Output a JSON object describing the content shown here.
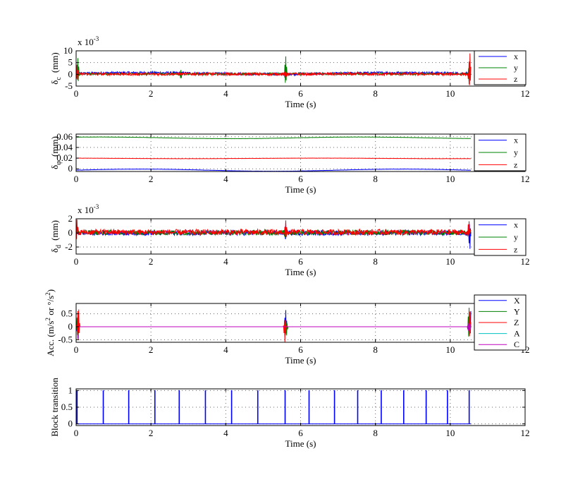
{
  "chart_data": [
    {
      "type": "line",
      "xlabel": "Time (s)",
      "ylabel": "δc (mm)",
      "ylabel_parts": {
        "main": "δ",
        "sub": "c",
        "unit": "(mm)"
      },
      "exponent_label": {
        "base": "x 10",
        "power": "-3"
      },
      "xlim": [
        0,
        12
      ],
      "xticks": [
        0,
        2,
        4,
        6,
        8,
        10,
        12
      ],
      "xtick_labels": [
        "0",
        "2",
        "4",
        "6",
        "8",
        "10",
        "12"
      ],
      "ylim": [
        -5,
        10
      ],
      "yticks": [
        -5,
        0,
        5,
        10
      ],
      "ytick_labels": [
        "-5",
        "0",
        "5",
        "10"
      ],
      "grid": true,
      "legend": "right",
      "series": [
        {
          "name": "x",
          "color": "#0000ff",
          "base": 0.4,
          "noise": 0.5,
          "spikes": [
            [
              0.03,
              4
            ],
            [
              5.6,
              -3
            ],
            [
              10.5,
              -4
            ]
          ],
          "drift": 0.3
        },
        {
          "name": "y",
          "color": "#008000",
          "base": 0.2,
          "noise": 0.4,
          "spikes": [
            [
              0.05,
              7
            ],
            [
              2.8,
              -2.5
            ],
            [
              5.6,
              8
            ],
            [
              10.5,
              -5
            ]
          ],
          "drift": 0.0
        },
        {
          "name": "z",
          "color": "#ff0000",
          "base": 0.1,
          "noise": 0.6,
          "spikes": [
            [
              0.02,
              5
            ],
            [
              5.6,
              -2
            ],
            [
              10.52,
              10
            ]
          ],
          "drift": 0.0
        }
      ]
    },
    {
      "type": "line",
      "xlabel": "Time (s)",
      "ylabel": "δφ (mm)",
      "ylabel_parts": {
        "main": "δ",
        "sub": "φ",
        "unit": "(mm)"
      },
      "xlim": [
        0,
        12
      ],
      "xticks": [
        0,
        2,
        4,
        6,
        8,
        10,
        12
      ],
      "xtick_labels": [
        "0",
        "2",
        "4",
        "6",
        "8",
        "10",
        "12"
      ],
      "ylim": [
        -0.005,
        0.065
      ],
      "yticks": [
        0,
        0.02,
        0.04,
        0.06
      ],
      "ytick_labels": [
        "0",
        "0.02",
        "0.04",
        "0.06"
      ],
      "grid": true,
      "legend": "right",
      "series": [
        {
          "name": "x",
          "color": "#0000ff",
          "base": -0.0025,
          "noise": 0.0002,
          "spikes": [],
          "drift": 0.002
        },
        {
          "name": "y",
          "color": "#008000",
          "base": 0.058,
          "noise": 0.0002,
          "spikes": [],
          "drift": 0.0015
        },
        {
          "name": "z",
          "color": "#ff0000",
          "base": 0.0195,
          "noise": 0.0002,
          "spikes": [],
          "drift": 0.0005
        }
      ]
    },
    {
      "type": "line",
      "xlabel": "Time (s)",
      "ylabel": "δd (mm)",
      "ylabel_parts": {
        "main": "δ",
        "sub": "d",
        "unit": "(mm)"
      },
      "exponent_label": {
        "base": "x 10",
        "power": "-3"
      },
      "xlim": [
        0,
        12
      ],
      "xticks": [
        0,
        2,
        4,
        6,
        8,
        10,
        12
      ],
      "xtick_labels": [
        "0",
        "2",
        "4",
        "6",
        "8",
        "10",
        "12"
      ],
      "ylim": [
        -3,
        2
      ],
      "yticks": [
        -2,
        0,
        2
      ],
      "ytick_labels": [
        "-2",
        "0",
        "2"
      ],
      "grid": true,
      "legend": "right",
      "series": [
        {
          "name": "x",
          "color": "#0000ff",
          "base": 0.0,
          "noise": 0.35,
          "spikes": [
            [
              5.6,
              1.2
            ],
            [
              10.52,
              -2.5
            ]
          ],
          "drift": 0.0
        },
        {
          "name": "y",
          "color": "#008000",
          "base": 0.05,
          "noise": 0.35,
          "spikes": [
            [
              5.6,
              -0.9
            ]
          ],
          "drift": 0.0
        },
        {
          "name": "z",
          "color": "#ff0000",
          "base": 0.1,
          "noise": 0.4,
          "spikes": [
            [
              0.02,
              1.8
            ],
            [
              5.6,
              1.4
            ],
            [
              10.5,
              1.6
            ]
          ],
          "drift": 0.0
        }
      ]
    },
    {
      "type": "line",
      "xlabel": "Time (s)",
      "ylabel": "Acc. (m/s² or °/s²)",
      "ylabel_parts": {
        "main": "Acc. (m/s",
        "sup1": "2",
        "mid": " or °/s",
        "sup2": "2",
        "end": ")"
      },
      "xlim": [
        0,
        12
      ],
      "xticks": [
        0,
        2,
        4,
        6,
        8,
        10,
        12
      ],
      "xtick_labels": [
        "0",
        "2",
        "4",
        "6",
        "8",
        "10",
        "12"
      ],
      "ylim": [
        -0.6,
        0.9
      ],
      "yticks": [
        -0.5,
        0,
        0.5
      ],
      "ytick_labels": [
        "-0.5",
        "0",
        "0.5"
      ],
      "grid": true,
      "legend": "right",
      "series": [
        {
          "name": "X",
          "color": "#0000ff",
          "base": 0,
          "noise": 0,
          "spikes": [
            [
              0.05,
              -0.5
            ],
            [
              5.6,
              0.7
            ],
            [
              10.55,
              0.6
            ]
          ],
          "drift": 0
        },
        {
          "name": "Y",
          "color": "#008000",
          "base": 0,
          "noise": 0,
          "spikes": [
            [
              0.04,
              0.6
            ],
            [
              5.62,
              -0.4
            ],
            [
              10.5,
              0.8
            ]
          ],
          "drift": 0
        },
        {
          "name": "Z",
          "color": "#ff0000",
          "base": 0,
          "noise": 0,
          "spikes": [
            [
              0.06,
              0.9
            ],
            [
              5.58,
              -0.6
            ],
            [
              10.52,
              0.7
            ]
          ],
          "drift": 0
        },
        {
          "name": "A",
          "color": "#00bfbf",
          "base": 0,
          "noise": 0,
          "spikes": [],
          "drift": 0
        },
        {
          "name": "C",
          "color": "#bf00bf",
          "base": 0,
          "noise": 0,
          "spikes": [
            [
              10.5,
              -0.3
            ]
          ],
          "drift": 0
        }
      ]
    },
    {
      "type": "line",
      "xlabel": "Time (s)",
      "ylabel": "Block transition",
      "xlim": [
        0,
        12
      ],
      "xticks": [
        0,
        2,
        4,
        6,
        8,
        10,
        12
      ],
      "xtick_labels": [
        "0",
        "2",
        "4",
        "6",
        "8",
        "10",
        "12"
      ],
      "ylim": [
        -0.05,
        1.05
      ],
      "yticks": [
        0,
        0.5,
        1
      ],
      "ytick_labels": [
        "0",
        "0.5",
        "1"
      ],
      "grid": true,
      "legend": "none",
      "series": [
        {
          "name": "",
          "color": "#0000ff",
          "transitions": [
            0.02,
            0.72,
            1.4,
            2.1,
            2.75,
            3.45,
            4.15,
            4.85,
            5.58,
            6.22,
            6.9,
            7.52,
            8.15,
            8.75,
            9.35,
            9.92,
            10.5
          ]
        }
      ]
    }
  ]
}
